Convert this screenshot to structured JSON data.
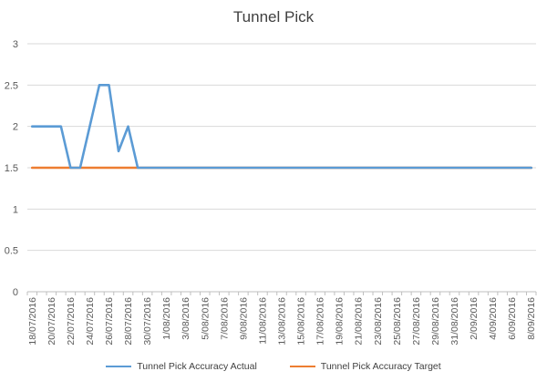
{
  "chart_data": {
    "type": "line",
    "title": "Tunnel Pick",
    "xlabel": "",
    "ylabel": "",
    "ylim": [
      0,
      3
    ],
    "yticks": [
      "0",
      "0.5",
      "1",
      "1.5",
      "2",
      "2.5",
      "3"
    ],
    "grid": true,
    "legend_position": "bottom",
    "x": [
      "18/07/2016",
      "19/07/2016",
      "20/07/2016",
      "21/07/2016",
      "22/07/2016",
      "23/07/2016",
      "24/07/2016",
      "25/07/2016",
      "26/07/2016",
      "27/07/2016",
      "28/07/2016",
      "29/07/2016",
      "30/07/2016",
      "31/07/2016",
      "1/08/2016",
      "2/08/2016",
      "3/08/2016",
      "4/08/2016",
      "5/08/2016",
      "6/08/2016",
      "7/08/2016",
      "8/08/2016",
      "9/08/2016",
      "10/08/2016",
      "11/08/2016",
      "12/08/2016",
      "13/08/2016",
      "14/08/2016",
      "15/08/2016",
      "16/08/2016",
      "17/08/2016",
      "18/08/2016",
      "19/08/2016",
      "20/08/2016",
      "21/08/2016",
      "22/08/2016",
      "23/08/2016",
      "24/08/2016",
      "25/08/2016",
      "26/08/2016",
      "27/08/2016",
      "28/08/2016",
      "29/08/2016",
      "30/08/2016",
      "31/08/2016",
      "1/09/2016",
      "2/09/2016",
      "3/09/2016",
      "4/09/2016",
      "5/09/2016",
      "6/09/2016",
      "7/09/2016",
      "8/09/2016"
    ],
    "xtick_labels": [
      "18/07/2016",
      "20/07/2016",
      "22/07/2016",
      "24/07/2016",
      "26/07/2016",
      "28/07/2016",
      "30/07/2016",
      "1/08/2016",
      "3/08/2016",
      "5/08/2016",
      "7/08/2016",
      "9/08/2016",
      "11/08/2016",
      "13/08/2016",
      "15/08/2016",
      "17/08/2016",
      "19/08/2016",
      "21/08/2016",
      "23/08/2016",
      "25/08/2016",
      "27/08/2016",
      "29/08/2016",
      "31/08/2016",
      "2/09/2016",
      "4/09/2016",
      "6/09/2016",
      "8/09/2016"
    ],
    "series": [
      {
        "name": "Tunnel Pick Accuracy Actual",
        "color": "#5B9BD5",
        "values": [
          2,
          2,
          2,
          2,
          1.5,
          1.5,
          2,
          2.5,
          2.5,
          1.7,
          2,
          1.5,
          1.5,
          1.5,
          1.5,
          1.5,
          1.5,
          1.5,
          1.5,
          1.5,
          1.5,
          1.5,
          1.5,
          1.5,
          1.5,
          1.5,
          1.5,
          1.5,
          1.5,
          1.5,
          1.5,
          1.5,
          1.5,
          1.5,
          1.5,
          1.5,
          1.5,
          1.5,
          1.5,
          1.5,
          1.5,
          1.5,
          1.5,
          1.5,
          1.5,
          1.5,
          1.5,
          1.5,
          1.5,
          1.5,
          1.5,
          1.5,
          1.5
        ]
      },
      {
        "name": "Tunnel Pick Accuracy Target",
        "color": "#ED7D31",
        "values": [
          1.5,
          1.5,
          1.5,
          1.5,
          1.5,
          1.5,
          1.5,
          1.5,
          1.5,
          1.5,
          1.5,
          1.5,
          1.5,
          1.5,
          1.5,
          1.5,
          1.5,
          1.5,
          1.5,
          1.5,
          1.5,
          1.5,
          1.5,
          1.5,
          1.5,
          1.5,
          1.5,
          1.5,
          1.5,
          1.5,
          1.5,
          1.5,
          1.5,
          1.5,
          1.5,
          1.5,
          1.5,
          1.5,
          1.5,
          1.5,
          1.5,
          1.5,
          1.5,
          1.5,
          1.5,
          1.5,
          1.5,
          1.5,
          1.5,
          1.5,
          1.5,
          1.5,
          1.5
        ]
      }
    ]
  },
  "styles": {
    "grid_color": "#D9D9D9",
    "axis_color": "#BFBFBF",
    "tick_text_color": "#595959"
  }
}
